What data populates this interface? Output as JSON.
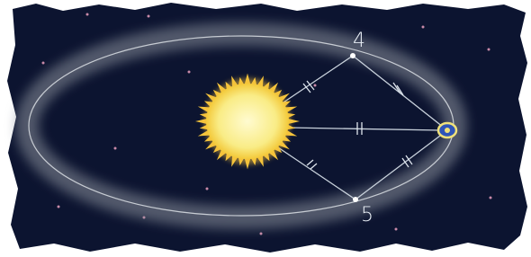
{
  "points": [
    {
      "label": "4"
    },
    {
      "label": "5"
    }
  ]
}
